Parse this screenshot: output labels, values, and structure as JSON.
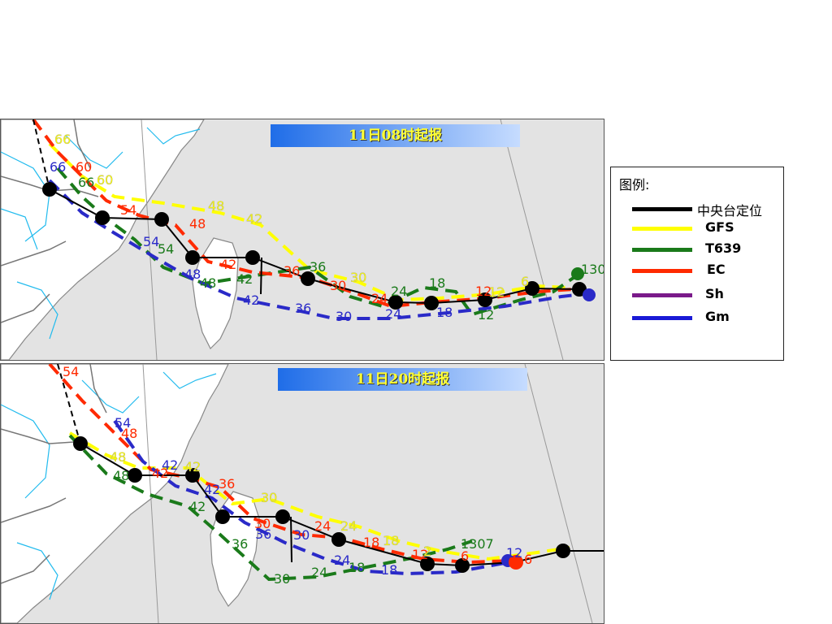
{
  "panels": [
    {
      "title": "11日08时起报",
      "tracks": [
        {
          "key": "gfs",
          "labels": [
            "66",
            "60",
            "60",
            "54",
            "48",
            "42",
            "30",
            "24",
            "18",
            "12",
            "6",
            "6"
          ]
        },
        {
          "key": "t639",
          "labels": [
            "66",
            "60",
            "54",
            "48",
            "42",
            "36",
            "30",
            "24",
            "18",
            "12",
            "130"
          ]
        },
        {
          "key": "ec",
          "labels": [
            "60",
            "54",
            "48",
            "42",
            "36",
            "30",
            "24",
            "18",
            "12",
            "6",
            "18"
          ]
        },
        {
          "key": "gm",
          "labels": [
            "66",
            "54",
            "48",
            "42",
            "36",
            "30",
            "24",
            "18",
            "12"
          ]
        }
      ]
    },
    {
      "title": "11日20时起报",
      "tracks": [
        {
          "key": "gfs",
          "labels": [
            "54",
            "48",
            "42",
            "42",
            "36",
            "30",
            "24",
            "18",
            "12",
            "6"
          ]
        },
        {
          "key": "t639",
          "labels": [
            "48",
            "42",
            "36",
            "30",
            "24",
            "18",
            "12",
            "1307"
          ]
        },
        {
          "key": "ec",
          "labels": [
            "54",
            "48",
            "42",
            "36",
            "30",
            "24",
            "18",
            "12",
            "6",
            "12",
            "6",
            "0"
          ]
        },
        {
          "key": "gm",
          "labels": [
            "54",
            "48",
            "42",
            "36",
            "30",
            "24",
            "18",
            "12",
            "6"
          ]
        }
      ]
    }
  ],
  "legend": {
    "title": "图例:",
    "items": [
      {
        "label": "中央台定位",
        "color": "#000000"
      },
      {
        "label": "GFS",
        "color": "#ffff00"
      },
      {
        "label": "T639",
        "color": "#1a7a1a"
      },
      {
        "label": "EC",
        "color": "#ff2a00"
      },
      {
        "label": "Sh",
        "color": "#7a1a8a"
      },
      {
        "label": "Gm",
        "color": "#1a1ad6"
      }
    ]
  },
  "colors": {
    "official": "#000000",
    "gfs": "#ffff00",
    "t639": "#1a7a1a",
    "ec": "#ff2a00",
    "gm": "#2a2ac8",
    "sea": "#e3e3e3",
    "land": "#ffffff",
    "province_border": "#7a7a7a",
    "river": "#22bbee"
  }
}
